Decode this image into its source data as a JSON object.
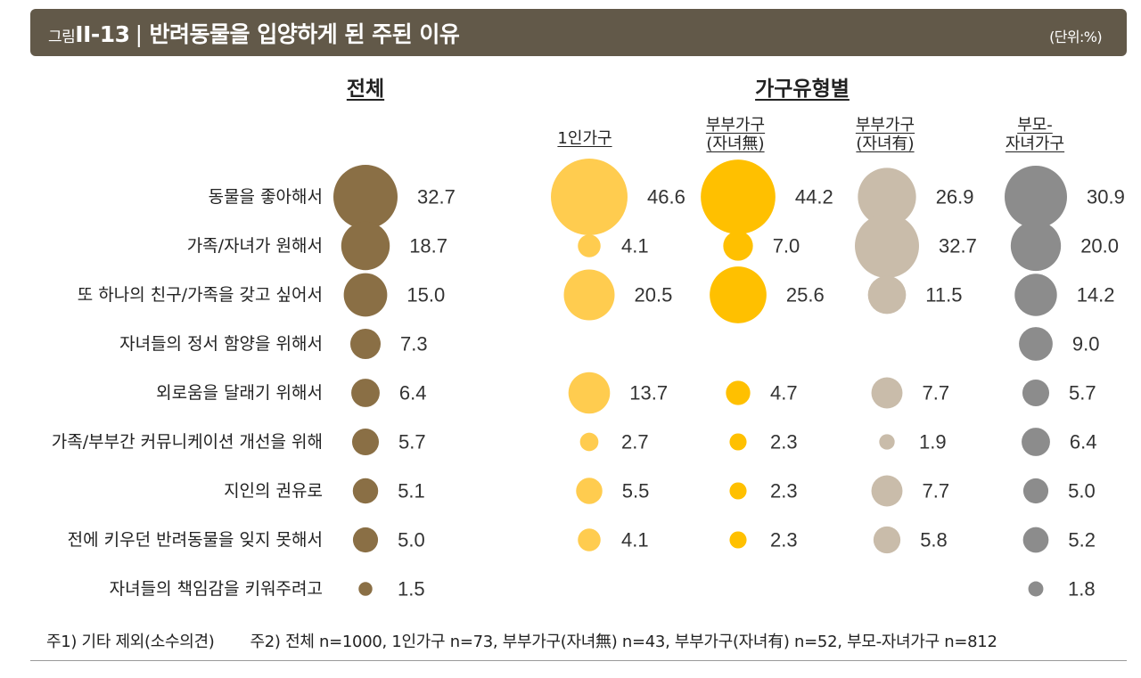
{
  "figure": {
    "label": "그림",
    "number": "II-13",
    "separator": "|",
    "title": "반려동물을 입양하게 된 주된 이유",
    "unit": "(단위:%)"
  },
  "sections": {
    "overall": "전체",
    "by_household": "가구유형별"
  },
  "notes": {
    "note1": "주1) 기타 제외(소수의견)",
    "note2": "주2) 전체 n=1000, 1인가구 n=73, 부부가구(자녀無) n=43, 부부가구(자녀有) n=52, 부모-자녀가구 n=812"
  },
  "chart_data": {
    "type": "bubble-table",
    "unit": "%",
    "categories": [
      "동물을 좋아해서",
      "가족/자녀가 원해서",
      "또 하나의 친구/가족을 갖고 싶어서",
      "자녀들의 정서 함양을 위해서",
      "외로움을 달래기 위해서",
      "가족/부부간 커뮤니케이션 개선을 위해",
      "지인의 권유로",
      "전에 키우던 반려동물을 잊지 못해서",
      "자녀들의 책임감을 키워주려고"
    ],
    "series": [
      {
        "name": "전체",
        "head": [
          "전체"
        ],
        "color": "#8a6f45",
        "values": [
          32.7,
          18.7,
          15.0,
          7.3,
          6.4,
          5.7,
          5.1,
          5.0,
          1.5
        ]
      },
      {
        "name": "1인가구",
        "head": [
          "1인가구"
        ],
        "color": "#ffcc4f",
        "values": [
          46.6,
          4.1,
          20.5,
          null,
          13.7,
          2.7,
          5.5,
          4.1,
          null
        ]
      },
      {
        "name": "부부가구(자녀無)",
        "head": [
          "부부가구",
          "(자녀無)"
        ],
        "color": "#ffc000",
        "values": [
          44.2,
          7.0,
          25.6,
          null,
          4.7,
          2.3,
          2.3,
          2.3,
          null
        ]
      },
      {
        "name": "부부가구(자녀有)",
        "head": [
          "부부가구",
          "(자녀有)"
        ],
        "color": "#c9bcaa",
        "values": [
          26.9,
          32.7,
          11.5,
          null,
          7.7,
          1.9,
          7.7,
          5.8,
          null
        ]
      },
      {
        "name": "부모-자녀가구",
        "head": [
          "부모-",
          "자녀가구"
        ],
        "color": "#8c8c8c",
        "values": [
          30.9,
          20.0,
          14.2,
          9.0,
          5.7,
          6.4,
          5.0,
          5.2,
          1.8
        ]
      }
    ]
  }
}
